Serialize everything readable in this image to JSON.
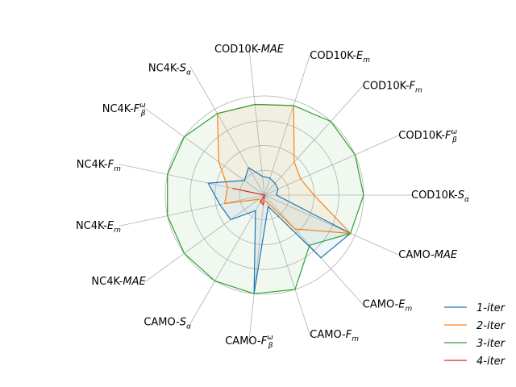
{
  "chart_data": {
    "type": "radar",
    "title": "",
    "axes": [
      {
        "name": "COD10K-S",
        "base": "COD10K-",
        "metric": "S",
        "sub": "α",
        "sup": "",
        "italic": false
      },
      {
        "name": "CAMO-MAE",
        "base": "CAMO-",
        "metric": "MAE",
        "sub": "",
        "sup": "",
        "italic": true
      },
      {
        "name": "CAMO-Em",
        "base": "CAMO-",
        "metric": "E",
        "sub": "m",
        "sup": "",
        "italic": false
      },
      {
        "name": "CAMO-Fm",
        "base": "CAMO-",
        "metric": "F",
        "sub": "m",
        "sup": "",
        "italic": false
      },
      {
        "name": "CAMO-Fβω",
        "base": "CAMO-",
        "metric": "F",
        "sub": "β",
        "sup": "ω",
        "italic": false
      },
      {
        "name": "CAMO-Sα",
        "base": "CAMO-",
        "metric": "S",
        "sub": "α",
        "sup": "",
        "italic": false
      },
      {
        "name": "NC4K-MAE",
        "base": "NC4K-",
        "metric": "MAE",
        "sub": "",
        "sup": "",
        "italic": true
      },
      {
        "name": "NC4K-Em",
        "base": "NC4K-",
        "metric": "E",
        "sub": "m",
        "sup": "",
        "italic": false
      },
      {
        "name": "NC4K-Fm",
        "base": "NC4K-",
        "metric": "F",
        "sub": "m",
        "sup": "",
        "italic": false
      },
      {
        "name": "NC4K-Fβω",
        "base": "NC4K-",
        "metric": "F",
        "sub": "β",
        "sup": "ω",
        "italic": false
      },
      {
        "name": "NC4K-Sα",
        "base": "NC4K-",
        "metric": "S",
        "sub": "α",
        "sup": "",
        "italic": false
      },
      {
        "name": "COD10K-MAE",
        "base": "COD10K-",
        "metric": "MAE",
        "sub": "",
        "sup": "",
        "italic": true
      },
      {
        "name": "COD10K-Em",
        "base": "COD10K-",
        "metric": "E",
        "sub": "m",
        "sup": "",
        "italic": false
      },
      {
        "name": "COD10K-Fm",
        "base": "COD10K-",
        "metric": "F",
        "sub": "m",
        "sup": "",
        "italic": false
      },
      {
        "name": "COD10K-Fβω",
        "base": "COD10K-",
        "metric": "F",
        "sub": "β",
        "sup": "ω",
        "italic": false
      }
    ],
    "rlim": [
      0,
      1
    ],
    "rings": [
      0.25,
      0.5,
      0.75,
      1.0
    ],
    "grid": true,
    "legend_position": "lower-right",
    "series": [
      {
        "name": "1-iter",
        "color": "#1f77b4",
        "values": [
          0.12,
          0.95,
          0.85,
          0.12,
          1.0,
          0.18,
          0.42,
          0.46,
          0.58,
          0.25,
          0.32,
          0.19,
          0.18,
          0.16,
          0.15
        ]
      },
      {
        "name": "2-iter",
        "color": "#ff7f0e",
        "values": [
          0.5,
          0.95,
          0.46,
          0.07,
          0.07,
          0.07,
          0.07,
          0.41,
          0.38,
          0.57,
          0.95,
          0.92,
          0.95,
          0.45,
          0.4
        ]
      },
      {
        "name": "3-iter",
        "color": "#2ca02c",
        "values": [
          1.0,
          0.95,
          0.68,
          1.0,
          1.0,
          1.0,
          1.0,
          1.0,
          1.0,
          1.0,
          0.95,
          0.92,
          0.95,
          1.0,
          1.0
        ]
      },
      {
        "name": "4-iter",
        "color": "#d62728",
        "values": [
          0.0,
          0.0,
          0.0,
          0.0,
          0.1,
          0.08,
          0.0,
          0.0,
          0.33,
          0.0,
          0.0,
          0.0,
          0.0,
          0.0,
          0.0
        ]
      }
    ]
  }
}
